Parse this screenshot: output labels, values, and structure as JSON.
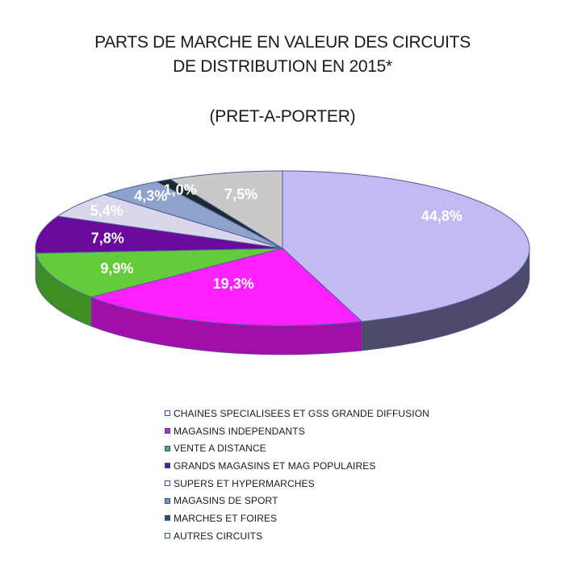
{
  "title_line1": "PARTS DE MARCHE EN VALEUR DES CIRCUITS",
  "title_line2": "DE DISTRIBUTION EN 2015*",
  "subtitle": "(PRET-A-PORTER)",
  "chart_data": {
    "type": "pie",
    "title": "PARTS DE MARCHE EN VALEUR DES CIRCUITS DE DISTRIBUTION EN 2015*",
    "subtitle": "(PRET-A-PORTER)",
    "legend_position": "bottom",
    "slices": [
      {
        "name": "CHAINES SPECIALISEES  ET  GSS GRANDE DIFFUSION",
        "value": 44.8,
        "label": "44,8%",
        "color": "#c2baf0",
        "side_color": "#4e4a6c",
        "swatch": "#ffffff"
      },
      {
        "name": "MAGASINS INDEPENDANTS",
        "value": 19.3,
        "label": "19,3%",
        "color": "#ff20ff",
        "side_color": "#a010a8",
        "swatch": "#cc22cc"
      },
      {
        "name": "VENTE A DISTANCE",
        "value": 9.9,
        "label": "9,9%",
        "color": "#62cc3a",
        "side_color": "#3f8e24",
        "swatch": "#4caf50"
      },
      {
        "name": "GRANDS MAGASINS ET MAG POPULAIRES",
        "value": 7.8,
        "label": "7,8%",
        "color": "#6a0a9c",
        "side_color": "#3e0560",
        "swatch": "#5a1a8a"
      },
      {
        "name": "SUPERS ET HYPERMARCHES",
        "value": 5.4,
        "label": "5,4%",
        "color": "#dcd6ec",
        "side_color": "#8c88a0",
        "swatch": "#ffffff"
      },
      {
        "name": "MAGASINS DE SPORT",
        "value": 4.3,
        "label": "4,3%",
        "color": "#8ea2cc",
        "side_color": "#566a8e",
        "swatch": "#7f96c0"
      },
      {
        "name": "MARCHES ET FOIRES",
        "value": 1.0,
        "label": "1,0%",
        "color": "#1d2b2a",
        "side_color": "#0e1615",
        "swatch": "#34495e"
      },
      {
        "name": "AUTRES CIRCUITS",
        "value": 7.5,
        "label": "7,5%",
        "color": "#c9c9c9",
        "side_color": "#8a8a8a",
        "swatch": "#ffffff"
      }
    ]
  }
}
